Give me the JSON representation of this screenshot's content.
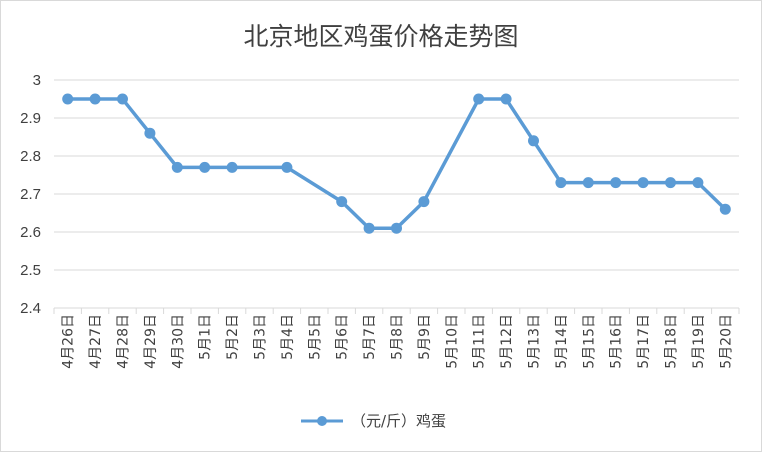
{
  "chart_data": {
    "type": "line",
    "title": "北京地区鸡蛋价格走势图",
    "categories": [
      "4月26日",
      "4月27日",
      "4月28日",
      "4月29日",
      "4月30日",
      "5月1日",
      "5月2日",
      "5月3日",
      "5月4日",
      "5月5日",
      "5月6日",
      "5月7日",
      "5月8日",
      "5月9日",
      "5月10日",
      "5月11日",
      "5月12日",
      "5月13日",
      "5月14日",
      "5月15日",
      "5月16日",
      "5月17日",
      "5月18日",
      "5月19日",
      "5月20日"
    ],
    "series": [
      {
        "name": "（元/斤）鸡蛋",
        "color": "#5b9bd5",
        "values": [
          2.95,
          2.95,
          2.95,
          2.86,
          2.77,
          2.77,
          2.77,
          null,
          2.77,
          null,
          2.68,
          2.61,
          2.61,
          2.68,
          null,
          2.95,
          2.95,
          2.84,
          2.73,
          2.73,
          2.73,
          2.73,
          2.73,
          2.73,
          2.66
        ]
      }
    ],
    "ylim": [
      2.4,
      3
    ],
    "yticks": [
      "2.4",
      "2.5",
      "2.6",
      "2.7",
      "2.8",
      "2.9",
      "3"
    ],
    "grid": true,
    "legend_position": "bottom"
  }
}
